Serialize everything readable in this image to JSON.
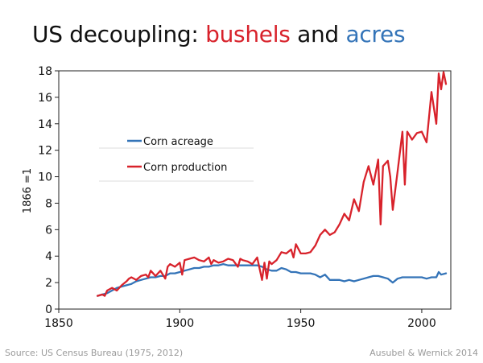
{
  "title": {
    "part1": "US decoupling: ",
    "part2": "bushels",
    "part3": " and ",
    "part4": "acres"
  },
  "colors": {
    "production": "#d8222b",
    "acreage": "#3474b8",
    "title": "#111111"
  },
  "footer": {
    "source": "Source: US Census Bureau (1975, 2012)",
    "credit": "Ausubel & Wernick 2014"
  },
  "chart_data": {
    "type": "line",
    "title": "US decoupling: bushels and acres",
    "xlabel": "",
    "ylabel": "1866 =1",
    "xlim": [
      1850,
      2012
    ],
    "ylim": [
      0,
      18
    ],
    "xticks": [
      1850,
      1900,
      1950,
      2000
    ],
    "yticks": [
      0,
      2,
      4,
      6,
      8,
      10,
      12,
      14,
      16,
      18
    ],
    "legend_position": "upper-left",
    "series": [
      {
        "name": "Corn acreage",
        "color": "#3474b8",
        "x": [
          1866,
          1868,
          1870,
          1872,
          1874,
          1876,
          1878,
          1880,
          1882,
          1884,
          1886,
          1888,
          1890,
          1892,
          1894,
          1896,
          1898,
          1900,
          1902,
          1904,
          1906,
          1908,
          1910,
          1912,
          1914,
          1916,
          1918,
          1920,
          1922,
          1924,
          1926,
          1928,
          1930,
          1932,
          1934,
          1936,
          1938,
          1940,
          1942,
          1944,
          1946,
          1948,
          1950,
          1952,
          1954,
          1956,
          1958,
          1960,
          1962,
          1964,
          1966,
          1968,
          1970,
          1972,
          1974,
          1976,
          1978,
          1980,
          1982,
          1984,
          1986,
          1988,
          1990,
          1992,
          1994,
          1996,
          1998,
          2000,
          2002,
          2004,
          2006,
          2007,
          2008,
          2010
        ],
        "values": [
          1.0,
          1.1,
          1.2,
          1.4,
          1.6,
          1.7,
          1.8,
          1.9,
          2.1,
          2.2,
          2.3,
          2.4,
          2.4,
          2.5,
          2.5,
          2.7,
          2.7,
          2.8,
          2.9,
          3.0,
          3.1,
          3.1,
          3.2,
          3.2,
          3.3,
          3.3,
          3.4,
          3.3,
          3.3,
          3.3,
          3.3,
          3.3,
          3.3,
          3.3,
          3.2,
          3.0,
          2.9,
          2.9,
          3.1,
          3.0,
          2.8,
          2.8,
          2.7,
          2.7,
          2.7,
          2.6,
          2.4,
          2.6,
          2.2,
          2.2,
          2.2,
          2.1,
          2.2,
          2.1,
          2.2,
          2.3,
          2.4,
          2.5,
          2.5,
          2.4,
          2.3,
          2.0,
          2.3,
          2.4,
          2.4,
          2.4,
          2.4,
          2.4,
          2.3,
          2.4,
          2.4,
          2.8,
          2.6,
          2.7
        ]
      },
      {
        "name": "Corn production",
        "color": "#d8222b",
        "x": [
          1866,
          1868,
          1869,
          1870,
          1872,
          1873,
          1874,
          1876,
          1878,
          1879,
          1880,
          1882,
          1884,
          1886,
          1887,
          1888,
          1890,
          1892,
          1894,
          1895,
          1896,
          1898,
          1900,
          1901,
          1902,
          1904,
          1906,
          1908,
          1910,
          1912,
          1913,
          1914,
          1916,
          1918,
          1920,
          1922,
          1924,
          1925,
          1926,
          1928,
          1930,
          1932,
          1934,
          1935,
          1936,
          1937,
          1938,
          1940,
          1942,
          1944,
          1946,
          1947,
          1948,
          1950,
          1952,
          1954,
          1956,
          1958,
          1960,
          1962,
          1964,
          1966,
          1968,
          1970,
          1972,
          1974,
          1976,
          1978,
          1980,
          1982,
          1983,
          1984,
          1986,
          1987,
          1988,
          1990,
          1992,
          1993,
          1994,
          1996,
          1998,
          2000,
          2002,
          2004,
          2006,
          2007,
          2008,
          2009,
          2010
        ],
        "values": [
          1.0,
          1.1,
          1.0,
          1.4,
          1.6,
          1.5,
          1.4,
          1.8,
          2.1,
          2.3,
          2.4,
          2.2,
          2.5,
          2.6,
          2.4,
          2.9,
          2.5,
          2.9,
          2.3,
          3.2,
          3.4,
          3.2,
          3.5,
          2.6,
          3.7,
          3.8,
          3.9,
          3.7,
          3.6,
          3.9,
          3.4,
          3.7,
          3.5,
          3.6,
          3.8,
          3.7,
          3.2,
          3.8,
          3.7,
          3.6,
          3.4,
          3.9,
          2.2,
          3.5,
          2.3,
          3.6,
          3.4,
          3.7,
          4.3,
          4.2,
          4.5,
          3.9,
          4.9,
          4.2,
          4.2,
          4.3,
          4.8,
          5.6,
          6.0,
          5.6,
          5.8,
          6.4,
          7.2,
          6.7,
          8.3,
          7.4,
          9.6,
          10.8,
          9.4,
          11.3,
          6.4,
          10.8,
          11.2,
          10.0,
          7.5,
          10.4,
          13.4,
          9.4,
          13.4,
          12.8,
          13.3,
          13.4,
          12.6,
          16.4,
          14.0,
          17.8,
          16.6,
          17.9,
          17.0
        ]
      }
    ]
  }
}
